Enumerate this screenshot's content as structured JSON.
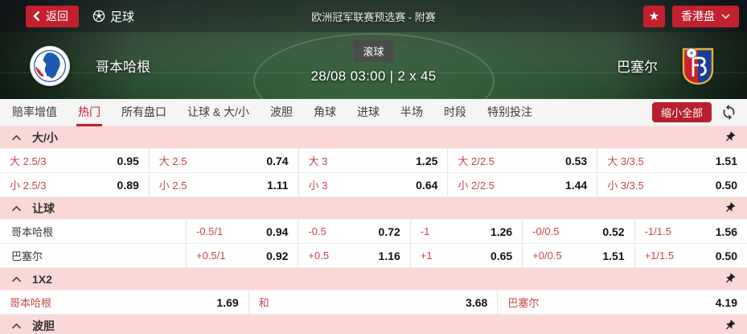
{
  "topbar": {
    "back_label": "返回",
    "sport_label": "足球",
    "league_title": "欧洲冠军联赛预选赛 - 附赛",
    "favorite_icon": "star-icon",
    "market_type_label": "香港盘"
  },
  "match": {
    "home_team": "哥本哈根",
    "away_team": "巴塞尔",
    "home_logo": "fc-copenhagen-crest",
    "away_logo": "fc-basel-crest",
    "live_badge": "滚球",
    "kickoff": "28/08 03:00 | 2 x 45"
  },
  "tabbar": {
    "tabs": [
      "赔率增值",
      "热门",
      "所有盘口",
      "让球 & 大/小",
      "波胆",
      "角球",
      "进球",
      "半场",
      "时段",
      "特别投注"
    ],
    "active_tab": "热门",
    "collapse_all_label": "缩小全部",
    "refresh_icon": "refresh-icon"
  },
  "colors": {
    "accent_red": "#c3202f",
    "section_header_pink": "#fbd8d8",
    "odds_label_red": "#c9464e"
  },
  "sections": [
    {
      "title": "大/小",
      "layout": "cols5",
      "rows": [
        [
          {
            "label": "大 2.5/3",
            "odds": "0.95"
          },
          {
            "label": "大 2.5",
            "odds": "0.74"
          },
          {
            "label": "大 3",
            "odds": "1.25"
          },
          {
            "label": "大 2/2.5",
            "odds": "0.53"
          },
          {
            "label": "大 3/3.5",
            "odds": "1.51"
          }
        ],
        [
          {
            "label": "小 2.5/3",
            "odds": "0.89"
          },
          {
            "label": "小 2.5",
            "odds": "1.11"
          },
          {
            "label": "小 3",
            "odds": "0.64"
          },
          {
            "label": "小 2/2.5",
            "odds": "1.44"
          },
          {
            "label": "小 3/3.5",
            "odds": "0.50"
          }
        ]
      ]
    },
    {
      "title": "让球",
      "layout": "team5",
      "rows": [
        {
          "team": "哥本哈根",
          "cells": [
            {
              "label": "-0.5/1",
              "odds": "0.94"
            },
            {
              "label": "-0.5",
              "odds": "0.72"
            },
            {
              "label": "-1",
              "odds": "1.26"
            },
            {
              "label": "-0/0.5",
              "odds": "0.52"
            },
            {
              "label": "-1/1.5",
              "odds": "1.56"
            }
          ]
        },
        {
          "team": "巴塞尔",
          "cells": [
            {
              "label": "+0.5/1",
              "odds": "0.92"
            },
            {
              "label": "+0.5",
              "odds": "1.16"
            },
            {
              "label": "+1",
              "odds": "0.65"
            },
            {
              "label": "+0/0.5",
              "odds": "1.51"
            },
            {
              "label": "+1/1.5",
              "odds": "0.50"
            }
          ]
        }
      ]
    },
    {
      "title": "1X2",
      "layout": "cols3",
      "rows": [
        [
          {
            "label": "哥本哈根",
            "odds": "1.69"
          },
          {
            "label": "和",
            "odds": "3.68"
          },
          {
            "label": "巴塞尔",
            "odds": "4.19"
          }
        ]
      ]
    },
    {
      "title": "波胆",
      "layout": "cols5",
      "rows": []
    }
  ]
}
